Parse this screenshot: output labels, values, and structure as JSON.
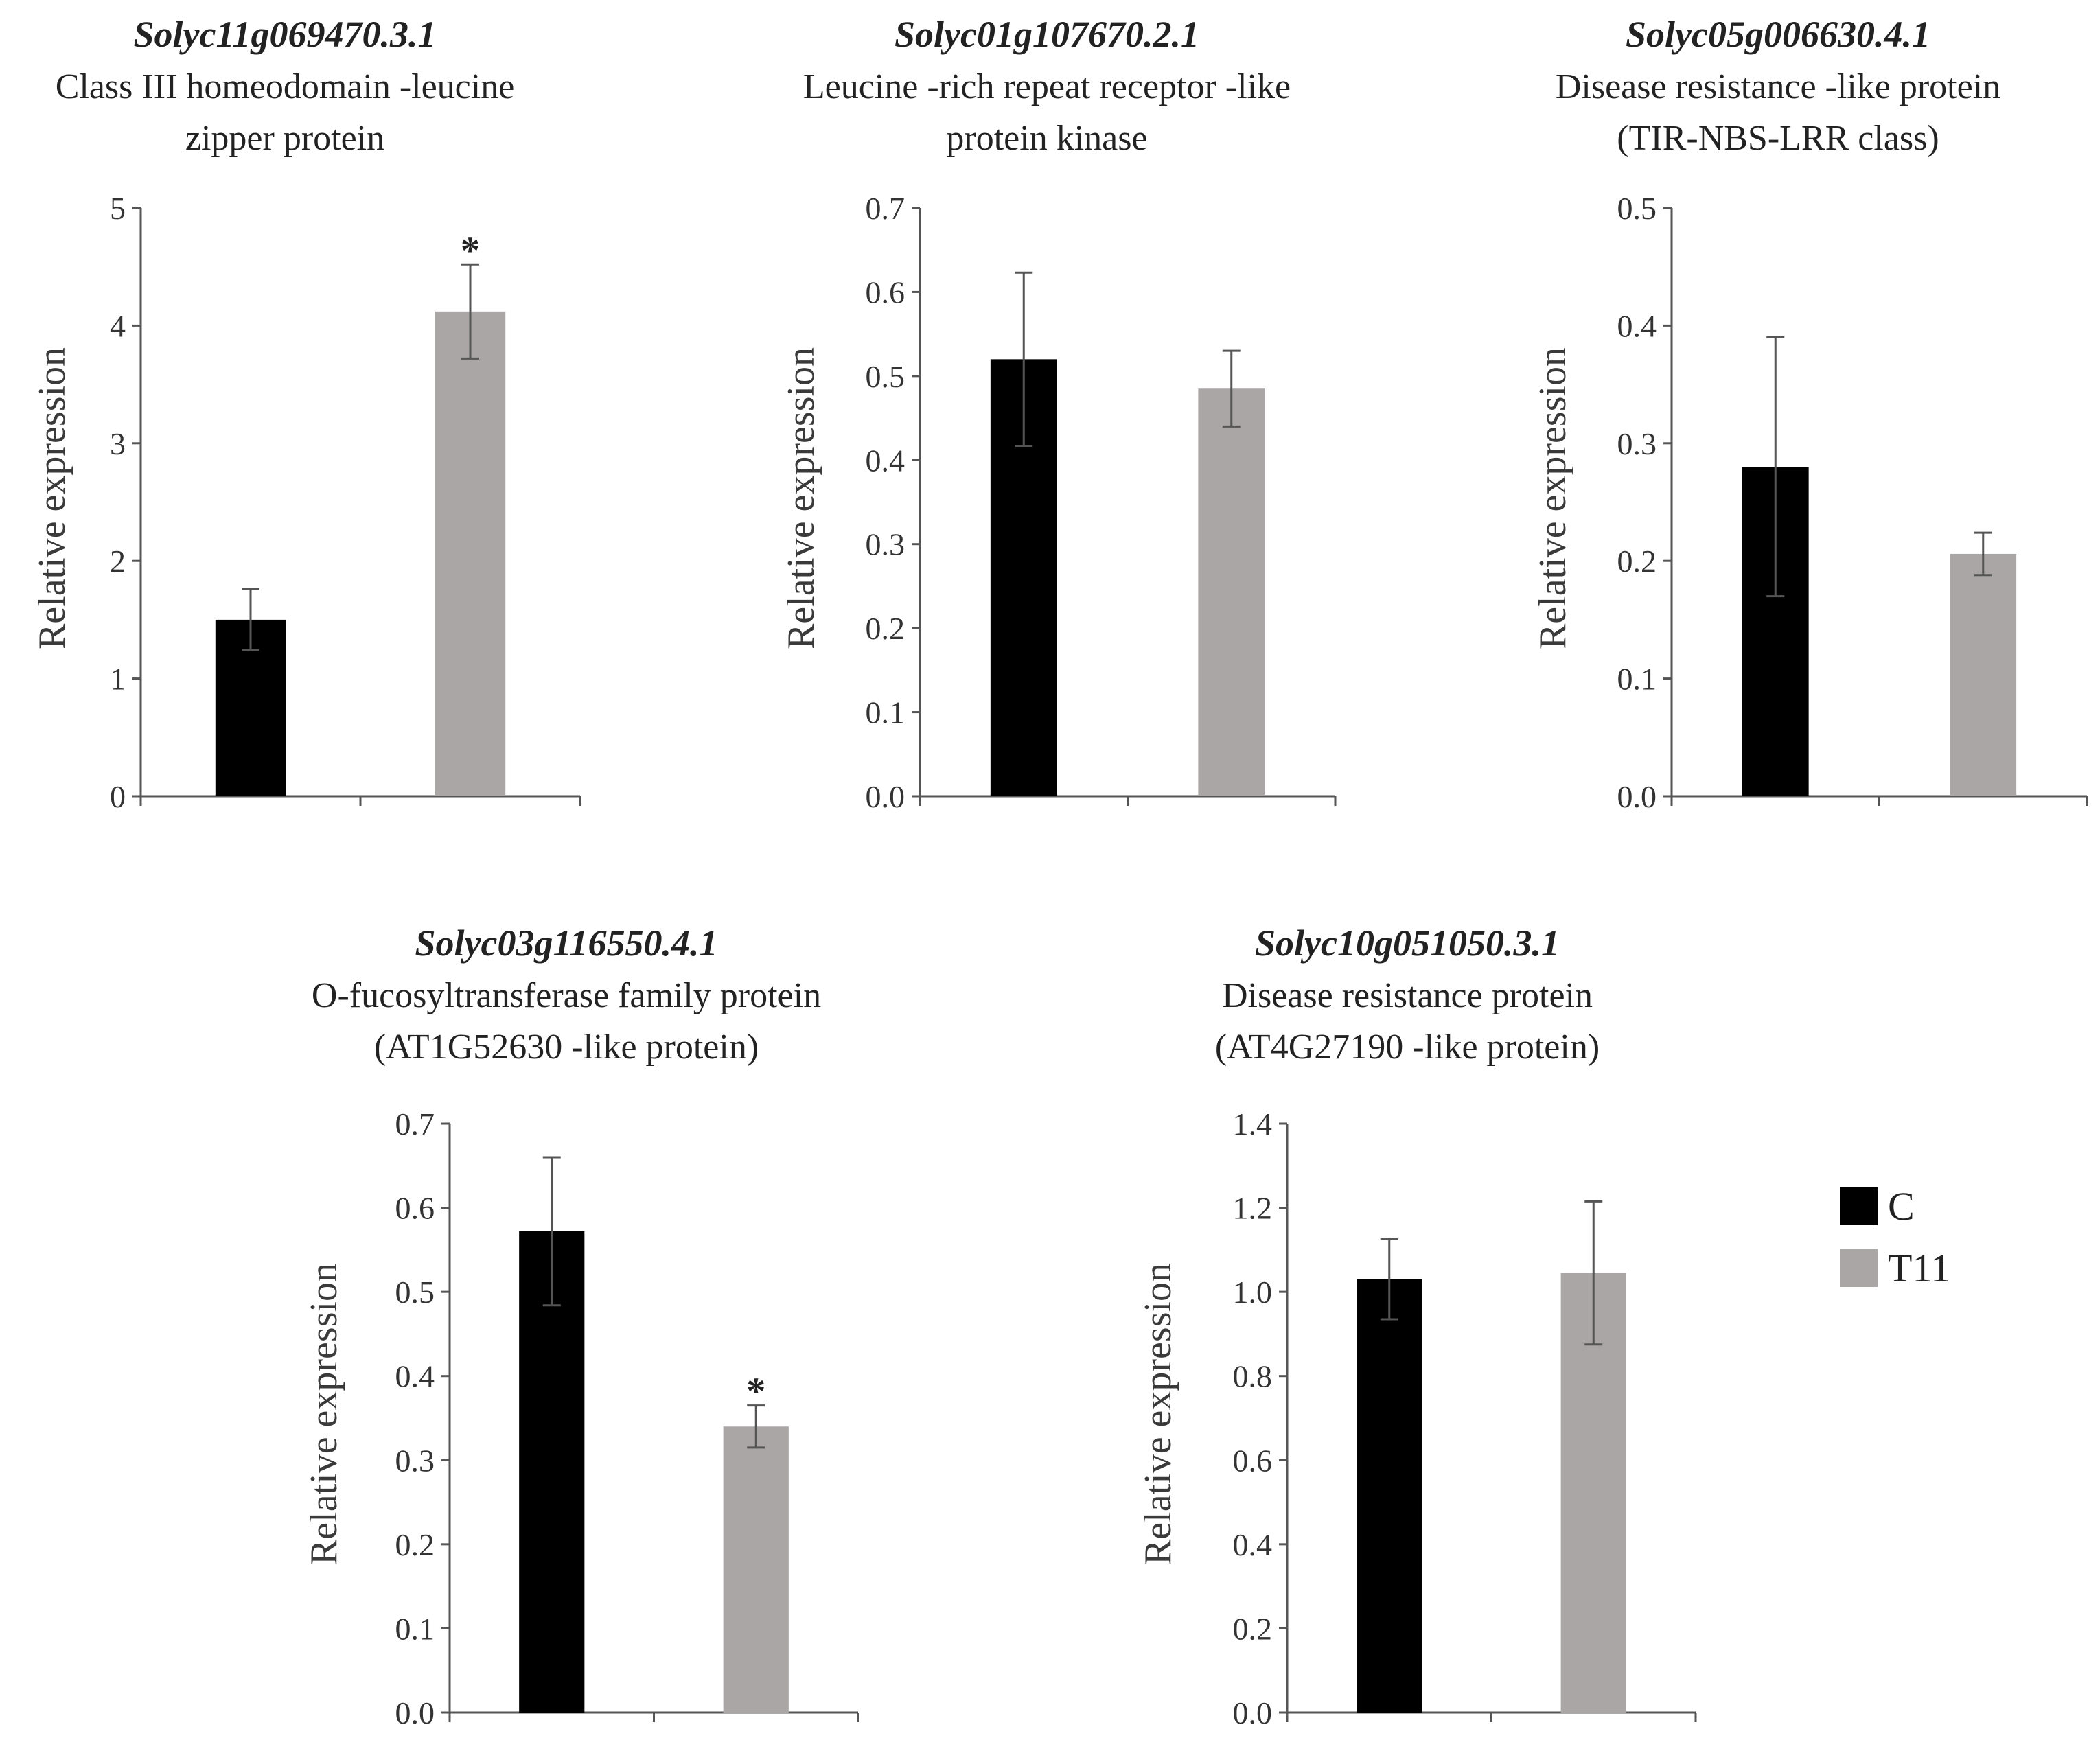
{
  "legend": {
    "entries": [
      {
        "label": "C",
        "color": "#000000"
      },
      {
        "label": "T11",
        "color": "#aaa6a5"
      }
    ]
  },
  "chart_data": [
    {
      "type": "bar",
      "gene": "Solyc11g069470.3.1",
      "description": [
        "Class III homeodomain -leucine",
        "zipper protein"
      ],
      "ylabel": "Relative expression",
      "ylim": [
        0,
        5
      ],
      "ticks": [
        "0",
        "1",
        "2",
        "3",
        "4",
        "5"
      ],
      "categories": [
        "C",
        "T11"
      ],
      "values": [
        1.5,
        4.12
      ],
      "errors": [
        0.26,
        0.4
      ],
      "significance": [
        "",
        "*"
      ]
    },
    {
      "type": "bar",
      "gene": "Solyc01g107670.2.1",
      "description": [
        "Leucine -rich repeat receptor -like",
        "protein kinase"
      ],
      "ylabel": "Relative expression",
      "ylim": [
        0,
        0.7
      ],
      "ticks": [
        "0.0",
        "0.1",
        "0.2",
        "0.3",
        "0.4",
        "0.5",
        "0.6",
        "0.7"
      ],
      "categories": [
        "C",
        "T11"
      ],
      "values": [
        0.52,
        0.485
      ],
      "errors": [
        0.103,
        0.045
      ],
      "significance": [
        "",
        ""
      ]
    },
    {
      "type": "bar",
      "gene": "Solyc05g006630.4.1",
      "description": [
        "Disease resistance -like protein",
        "(TIR-NBS-LRR class)"
      ],
      "ylabel": "Relative expression",
      "ylim": [
        0,
        0.5
      ],
      "ticks": [
        "0.0",
        "0.1",
        "0.2",
        "0.3",
        "0.4",
        "0.5"
      ],
      "categories": [
        "C",
        "T11"
      ],
      "values": [
        0.28,
        0.206
      ],
      "errors": [
        0.11,
        0.018
      ],
      "significance": [
        "",
        ""
      ]
    },
    {
      "type": "bar",
      "gene": "Solyc03g116550.4.1",
      "description": [
        "O-fucosyltransferase  family protein",
        "(AT1G52630 -like protein)"
      ],
      "ylabel": "Relative expression",
      "ylim": [
        0,
        0.7
      ],
      "ticks": [
        "0.0",
        "0.1",
        "0.2",
        "0.3",
        "0.4",
        "0.5",
        "0.6",
        "0.7"
      ],
      "categories": [
        "C",
        "T11"
      ],
      "values": [
        0.572,
        0.34
      ],
      "errors": [
        0.088,
        0.025
      ],
      "significance": [
        "",
        "*"
      ]
    },
    {
      "type": "bar",
      "gene": "Solyc10g051050.3.1",
      "description": [
        "Disease resistance protein",
        "(AT4G27190 -like protein)"
      ],
      "ylabel": "Relative expression",
      "ylim": [
        0,
        1.4
      ],
      "ticks": [
        "0.0",
        "0.2",
        "0.4",
        "0.6",
        "0.8",
        "1.0",
        "1.2",
        "1.4"
      ],
      "categories": [
        "C",
        "T11"
      ],
      "values": [
        1.03,
        1.045
      ],
      "errors": [
        0.095,
        0.17
      ],
      "significance": [
        "",
        ""
      ]
    }
  ]
}
